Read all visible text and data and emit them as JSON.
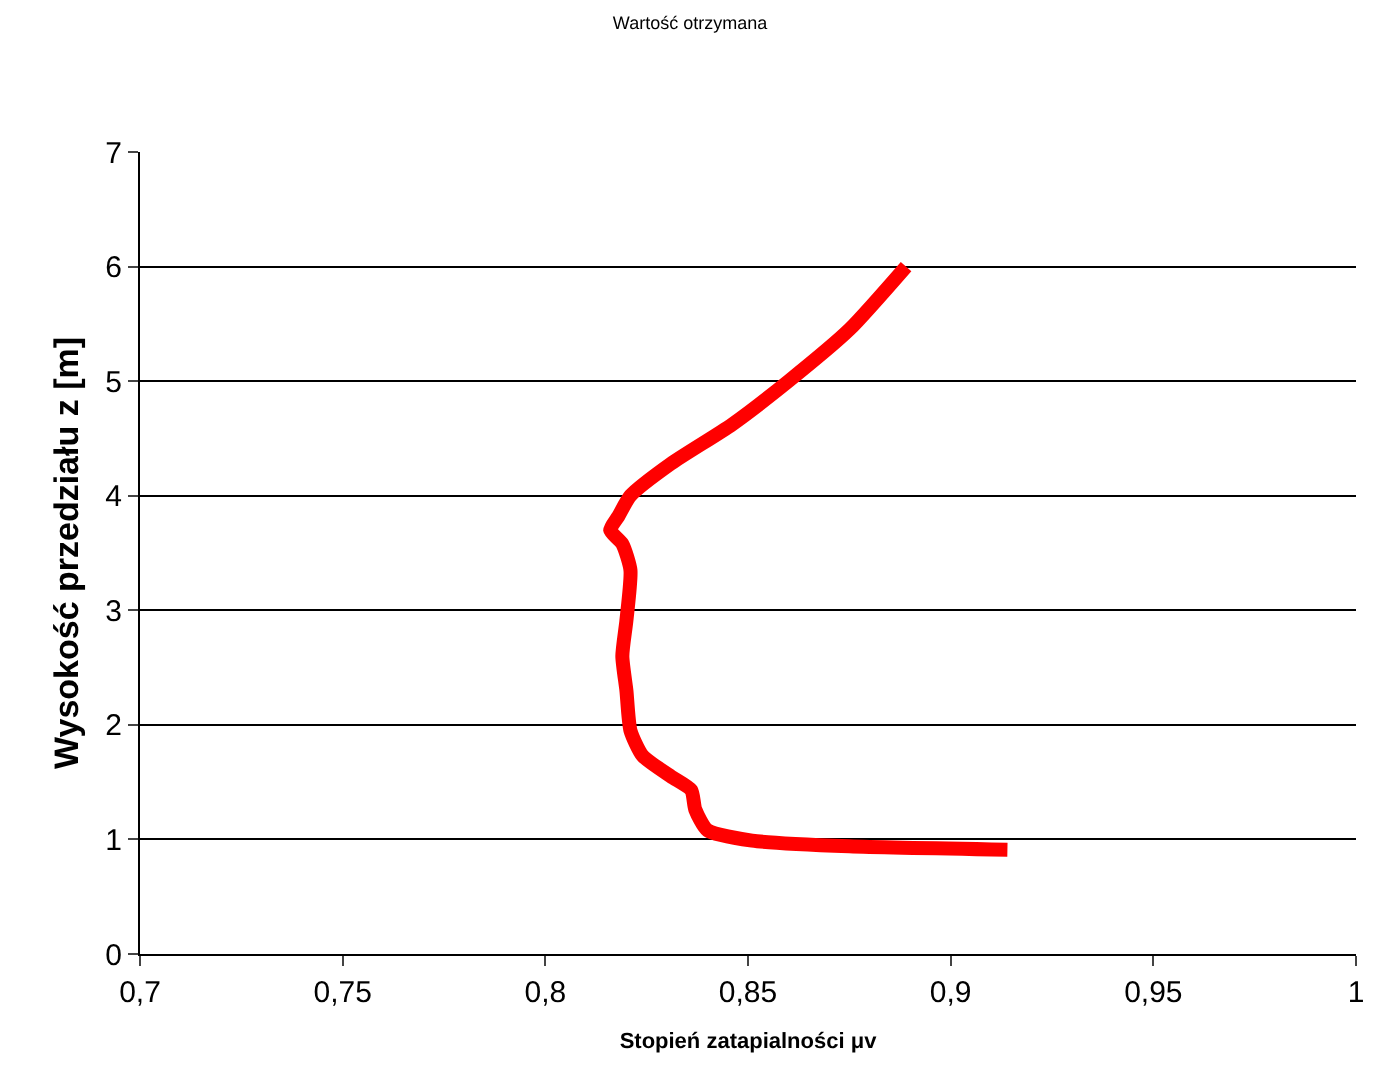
{
  "chart_data": {
    "type": "line",
    "title": "Wartość otrzymana",
    "xlabel": "Stopień zatapialności μv",
    "ylabel": "Wysokość przedziału z [m]",
    "series": [
      {
        "color": "#ff0000",
        "x": [
          0.889,
          0.875,
          0.86,
          0.846,
          0.831,
          0.821,
          0.818,
          0.816,
          0.819,
          0.821,
          0.82,
          0.819,
          0.82,
          0.821,
          0.824,
          0.831,
          0.836,
          0.837,
          0.84,
          0.851,
          0.875,
          0.914
        ],
        "values": [
          6.0,
          5.45,
          5.0,
          4.62,
          4.28,
          4.0,
          3.82,
          3.7,
          3.58,
          3.35,
          2.91,
          2.6,
          2.3,
          1.95,
          1.73,
          1.55,
          1.43,
          1.26,
          1.08,
          0.99,
          0.94,
          0.91
        ]
      }
    ],
    "xlim": [
      0.7,
      1
    ],
    "xticks": [
      {
        "value": 0.7,
        "label": "0,7"
      },
      {
        "value": 0.75,
        "label": "0,75"
      },
      {
        "value": 0.8,
        "label": "0,8"
      },
      {
        "value": 0.85,
        "label": "0,85"
      },
      {
        "value": 0.9,
        "label": "0,9"
      },
      {
        "value": 0.95,
        "label": "0,95"
      },
      {
        "value": 1,
        "label": "1"
      }
    ],
    "ylim": [
      0,
      7
    ],
    "yticks": [
      0,
      1,
      2,
      3,
      4,
      5,
      6,
      7
    ],
    "grid": "y",
    "marker": "none",
    "line_style": "solid"
  }
}
